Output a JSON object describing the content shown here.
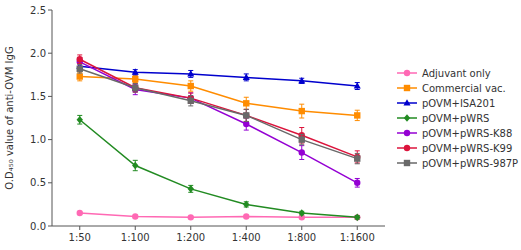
{
  "chart_data": {
    "type": "line",
    "categories": [
      "1:50",
      "1:100",
      "1:200",
      "1:400",
      "1:800",
      "1:1600"
    ],
    "series": [
      {
        "name": "Adjuvant only",
        "color": "#FF69B4",
        "marker": "circle",
        "line_style": "solid",
        "values": [
          0.15,
          0.11,
          0.1,
          0.11,
          0.1,
          0.1
        ],
        "errors": [
          0.01,
          0.01,
          0.01,
          0.01,
          0.01,
          0.01
        ]
      },
      {
        "name": "Commercial vac.",
        "color": "#FF8C00",
        "marker": "square",
        "line_style": "solid",
        "values": [
          1.73,
          1.7,
          1.62,
          1.42,
          1.33,
          1.28
        ],
        "errors": [
          0.05,
          0.04,
          0.06,
          0.07,
          0.08,
          0.06
        ]
      },
      {
        "name": "pOVM+ISA201",
        "color": "#0000CD",
        "marker": "triangle",
        "line_style": "solid",
        "values": [
          1.85,
          1.78,
          1.76,
          1.72,
          1.68,
          1.62
        ],
        "errors": [
          0.04,
          0.03,
          0.04,
          0.04,
          0.03,
          0.04
        ]
      },
      {
        "name": "pOVM+pWRS",
        "color": "#228B22",
        "marker": "diamond",
        "line_style": "solid",
        "values": [
          1.23,
          0.7,
          0.43,
          0.25,
          0.15,
          0.1
        ],
        "errors": [
          0.05,
          0.06,
          0.04,
          0.03,
          0.02,
          0.02
        ]
      },
      {
        "name": "pOVM+pWRS-K88",
        "color": "#9400D3",
        "marker": "circle",
        "line_style": "solid",
        "values": [
          1.9,
          1.58,
          1.48,
          1.18,
          0.85,
          0.5
        ],
        "errors": [
          0.05,
          0.06,
          0.06,
          0.07,
          0.08,
          0.05
        ]
      },
      {
        "name": "pOVM+pWRS-K99",
        "color": "#DC143C",
        "marker": "circle",
        "line_style": "solid",
        "values": [
          1.93,
          1.6,
          1.48,
          1.28,
          1.05,
          0.8
        ],
        "errors": [
          0.05,
          0.05,
          0.06,
          0.07,
          0.09,
          0.07
        ]
      },
      {
        "name": "pOVM+pWRS-987P",
        "color": "#696969",
        "marker": "square",
        "line_style": "solid",
        "values": [
          1.82,
          1.6,
          1.45,
          1.28,
          1.0,
          0.78
        ],
        "errors": [
          0.05,
          0.05,
          0.06,
          0.07,
          0.06,
          0.06
        ]
      }
    ],
    "y_label": "O.D₄₅₀ value of anti-OVM IgG",
    "ylim": [
      0.0,
      2.5
    ],
    "yticks": [
      {
        "value": 0,
        "label": "0.0"
      },
      0.5,
      {
        "value": 1,
        "label": "1.0"
      },
      1.5,
      {
        "value": 2,
        "label": "2.0"
      },
      2.5
    ],
    "grid": false,
    "legend": "right"
  }
}
